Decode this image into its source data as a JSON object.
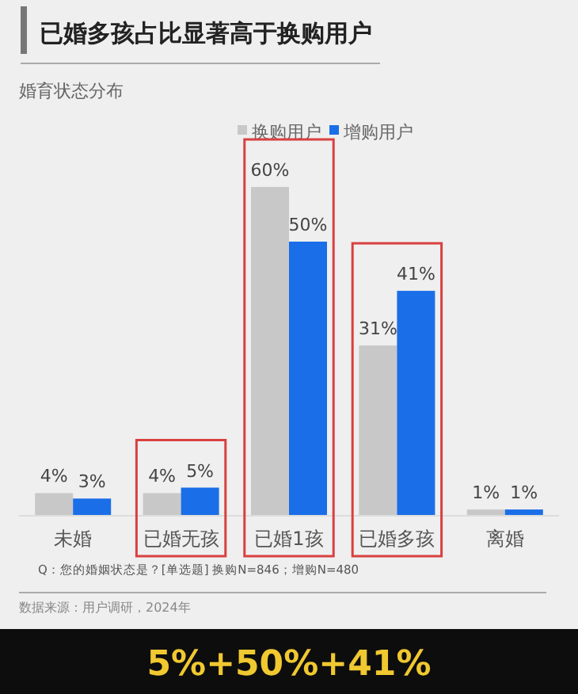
{
  "chart_data": {
    "type": "bar",
    "title": "已婚多孩占比显著高于换购用户",
    "subtitle": "婚育状态分布",
    "categories": [
      "未婚",
      "已婚无孩",
      "已婚1孩",
      "已婚多孩",
      "离婚"
    ],
    "series": [
      {
        "name": "换购用户",
        "color": "#c8c8c8",
        "values": [
          4,
          4,
          60,
          31,
          1
        ],
        "value_labels": [
          "4%",
          "4%",
          "60%",
          "31%",
          "1%"
        ]
      },
      {
        "name": "增购用户",
        "color": "#1a6ee8",
        "values": [
          3,
          5,
          50,
          41,
          1
        ],
        "value_labels": [
          "3%",
          "5%",
          "50%",
          "41%",
          "1%"
        ]
      }
    ],
    "legend": "top right",
    "annotations": [
      "Q：您的婚姻状态是？[单选题] 换购N=846；增购N=480",
      "数据来源：用户调研，2024年",
      "5%+50%+41%"
    ]
  }
}
